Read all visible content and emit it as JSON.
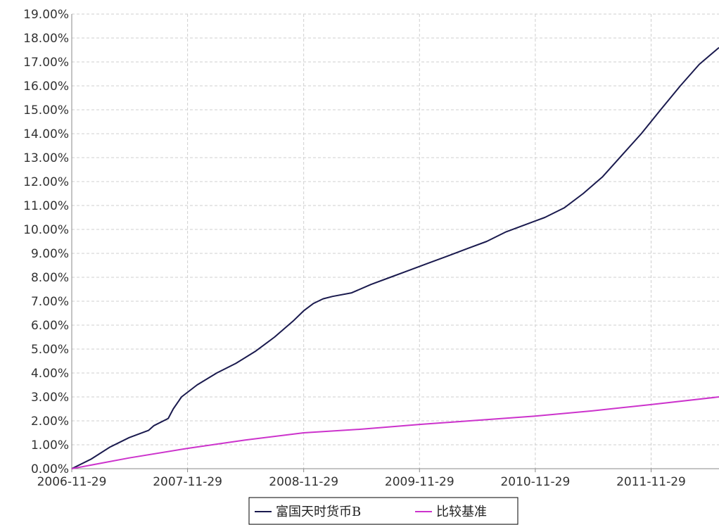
{
  "chart_data": {
    "type": "line",
    "x_tick_labels": [
      "2006-11-29",
      "2007-11-29",
      "2008-11-29",
      "2009-11-29",
      "2010-11-29",
      "2011-11-29"
    ],
    "y_tick_labels": [
      "0.00%",
      "1.00%",
      "2.00%",
      "3.00%",
      "4.00%",
      "5.00%",
      "6.00%",
      "7.00%",
      "8.00%",
      "9.00%",
      "10.00%",
      "11.00%",
      "12.00%",
      "13.00%",
      "14.00%",
      "15.00%",
      "16.00%",
      "17.00%",
      "18.00%",
      "19.00%"
    ],
    "xlim": [
      "2006-11-29",
      "2012-06-30"
    ],
    "ylim": [
      0,
      19
    ],
    "grid": true,
    "legend_placement": "bottom-center",
    "series": [
      {
        "name": "富国天时货币B",
        "color": "#1a1a4e",
        "points": [
          [
            "2006-11-29",
            0.0
          ],
          [
            "2007-01-29",
            0.4
          ],
          [
            "2007-03-29",
            0.9
          ],
          [
            "2007-05-29",
            1.3
          ],
          [
            "2007-07-29",
            1.6
          ],
          [
            "2007-08-15",
            1.8
          ],
          [
            "2007-09-29",
            2.1
          ],
          [
            "2007-10-15",
            2.5
          ],
          [
            "2007-11-10",
            3.0
          ],
          [
            "2007-12-29",
            3.5
          ],
          [
            "2008-02-29",
            4.0
          ],
          [
            "2008-04-29",
            4.4
          ],
          [
            "2008-06-29",
            4.9
          ],
          [
            "2008-08-29",
            5.5
          ],
          [
            "2008-10-29",
            6.2
          ],
          [
            "2008-11-29",
            6.6
          ],
          [
            "2008-12-29",
            6.9
          ],
          [
            "2009-01-29",
            7.1
          ],
          [
            "2009-02-28",
            7.2
          ],
          [
            "2009-04-29",
            7.35
          ],
          [
            "2009-06-29",
            7.7
          ],
          [
            "2009-08-29",
            8.0
          ],
          [
            "2009-10-29",
            8.3
          ],
          [
            "2009-12-29",
            8.6
          ],
          [
            "2010-02-28",
            8.9
          ],
          [
            "2010-04-29",
            9.2
          ],
          [
            "2010-06-29",
            9.5
          ],
          [
            "2010-08-29",
            9.9
          ],
          [
            "2010-10-29",
            10.2
          ],
          [
            "2010-12-29",
            10.5
          ],
          [
            "2011-02-28",
            10.9
          ],
          [
            "2011-04-29",
            11.5
          ],
          [
            "2011-06-29",
            12.2
          ],
          [
            "2011-08-29",
            13.1
          ],
          [
            "2011-10-29",
            14.0
          ],
          [
            "2011-12-29",
            15.0
          ],
          [
            "2012-02-29",
            16.0
          ],
          [
            "2012-04-29",
            16.9
          ],
          [
            "2012-06-30",
            17.6
          ]
        ]
      },
      {
        "name": "比较基准",
        "color": "#cc33cc",
        "points": [
          [
            "2006-11-29",
            0.0
          ],
          [
            "2007-05-29",
            0.45
          ],
          [
            "2007-11-29",
            0.85
          ],
          [
            "2008-05-29",
            1.2
          ],
          [
            "2008-11-29",
            1.5
          ],
          [
            "2009-05-29",
            1.65
          ],
          [
            "2009-11-29",
            1.85
          ],
          [
            "2010-05-29",
            2.02
          ],
          [
            "2010-11-29",
            2.2
          ],
          [
            "2011-05-29",
            2.42
          ],
          [
            "2011-11-29",
            2.68
          ],
          [
            "2012-06-30",
            3.0
          ]
        ]
      }
    ]
  }
}
